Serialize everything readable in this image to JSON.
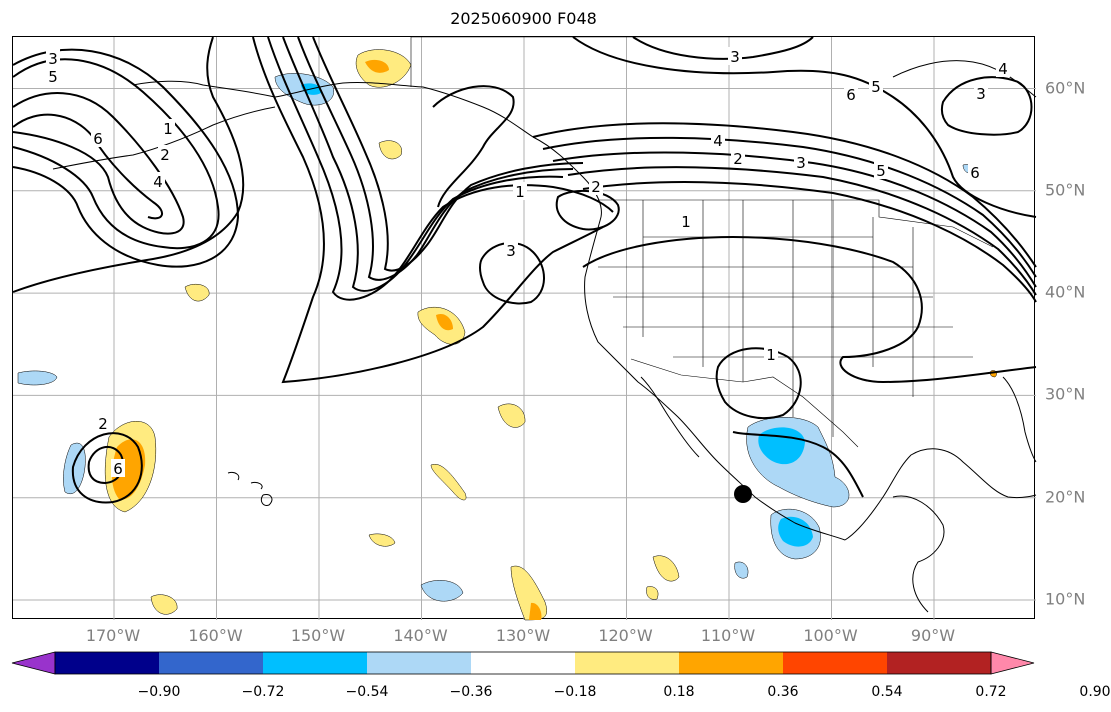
{
  "title": "2025060900 F048",
  "map": {
    "lat_labels": [
      {
        "label": "60°N",
        "lat": 60
      },
      {
        "label": "50°N",
        "lat": 50
      },
      {
        "label": "40°N",
        "lat": 40
      },
      {
        "label": "30°N",
        "lat": 30
      },
      {
        "label": "20°N",
        "lat": 20
      },
      {
        "label": "10°N",
        "lat": 10
      }
    ],
    "lon_labels": [
      {
        "label": "170°W",
        "lon": -170
      },
      {
        "label": "160°W",
        "lon": -160
      },
      {
        "label": "150°W",
        "lon": -150
      },
      {
        "label": "140°W",
        "lon": -140
      },
      {
        "label": "130°W",
        "lon": -130
      },
      {
        "label": "120°W",
        "lon": -120
      },
      {
        "label": "110°W",
        "lon": -110
      },
      {
        "label": "100°W",
        "lon": -100
      },
      {
        "label": "90°W",
        "lon": -90
      }
    ],
    "contour_labels": [
      "3",
      "5",
      "6",
      "1",
      "2",
      "4",
      "3",
      "6",
      "5",
      "4",
      "3",
      "4",
      "2",
      "3",
      "5",
      "6",
      "2",
      "1",
      "3",
      "1",
      "1",
      "2",
      "6"
    ]
  },
  "colorbar": {
    "colors": [
      "#9933cc",
      "#00008b",
      "#3366cc",
      "#00bfff",
      "#add8f6",
      "#ffffff",
      "#ffeb80",
      "#ffa500",
      "#ff4500",
      "#b22222",
      "#ff88aa"
    ],
    "tick_labels": [
      "−0.90",
      "−0.72",
      "−0.54",
      "−0.36",
      "−0.18",
      "0.18",
      "0.36",
      "0.54",
      "0.72",
      "0.90"
    ]
  }
}
